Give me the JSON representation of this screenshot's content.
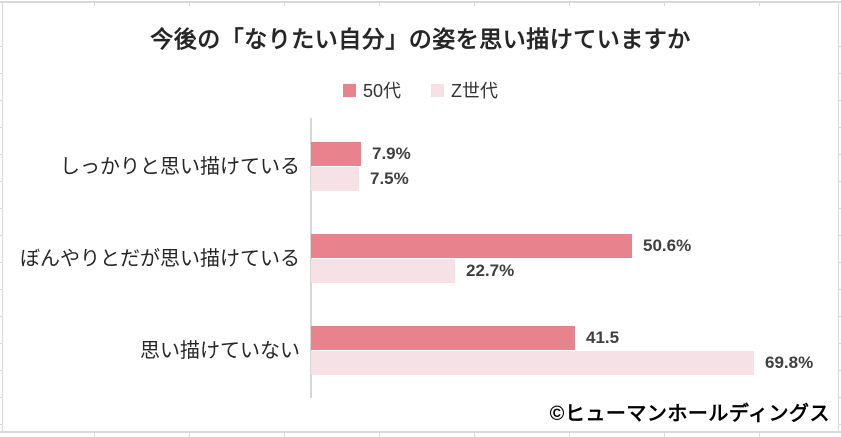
{
  "page": {
    "background_color": "#ffffff",
    "gridline_color": "#d9d9d9"
  },
  "chart_data": {
    "type": "bar",
    "orientation": "horizontal",
    "title": "今後の「なりたい自分」の姿を思い描けていますか",
    "categories": [
      "しっかりと思い描けている",
      "ぼんやりとだが思い描けている",
      "思い描けていない"
    ],
    "series": [
      {
        "name": "50代",
        "color": "#e8838d",
        "values": [
          7.9,
          50.6,
          41.5
        ],
        "labels": [
          "7.9%",
          "50.6%",
          "41.5"
        ]
      },
      {
        "name": "Z世代",
        "color": "#f6e2e6",
        "values": [
          7.5,
          22.7,
          69.8
        ],
        "labels": [
          "7.5%",
          "22.7%",
          "69.8%"
        ]
      }
    ],
    "xlim": [
      0,
      80
    ],
    "grid": false,
    "legend_position": "top",
    "axis_color": "#d6d6d6",
    "data_label_color": "#404040",
    "annotations": [
      "©ヒューマンホールディングス"
    ]
  },
  "footer": {
    "copyright": "©ヒューマンホールディングス"
  }
}
